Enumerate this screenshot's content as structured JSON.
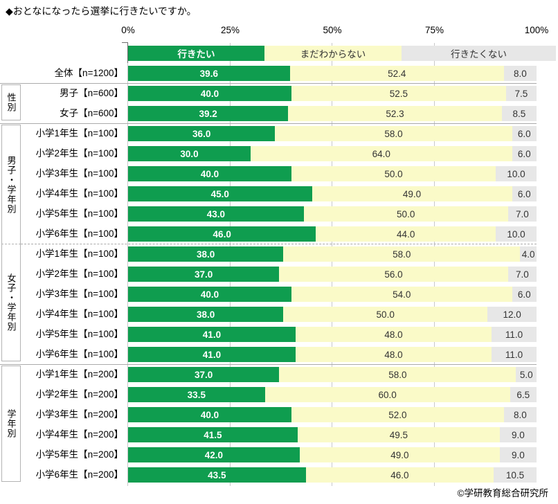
{
  "title": "◆おとなになったら選挙に行きたいですか。",
  "credit": "©学研教育総合研究所",
  "colors": {
    "want": "#0f9d4f",
    "unsure": "#fafac8",
    "not_want": "#e7e7e7",
    "gridline": "#c9c9c9",
    "separator": "#aaaaaa",
    "box_border": "#b3b3b3",
    "value_on_green": "#ffffff",
    "value_on_light": "#333333"
  },
  "chart_data": {
    "type": "bar",
    "stacked": true,
    "orientation": "horizontal",
    "title": "◆おとなになったら選挙に行きたいですか。",
    "xlim": [
      0,
      100
    ],
    "x_ticks": [
      "0%",
      "25%",
      "50%",
      "75%",
      "100%"
    ],
    "grid": "vertical-in-gaps",
    "legend_position": "top-as-bar",
    "series_names": [
      "行きたい",
      "まだわからない",
      "行きたくない"
    ],
    "series_colors": [
      "#0f9d4f",
      "#fafac8",
      "#e7e7e7"
    ],
    "value_format": "one-decimal",
    "groups": [
      {
        "name": "",
        "divider": "none",
        "rows": [
          {
            "label": "全体【n=1200】",
            "values": [
              39.6,
              52.4,
              8.0
            ]
          }
        ]
      },
      {
        "name": "性別",
        "divider": "solid",
        "rows": [
          {
            "label": "男子【n=600】",
            "values": [
              40.0,
              52.5,
              7.5
            ]
          },
          {
            "label": "女子【n=600】",
            "values": [
              39.2,
              52.3,
              8.5
            ]
          }
        ]
      },
      {
        "name": "男子・学年別",
        "divider": "solid",
        "rows": [
          {
            "label": "小学1年生【n=100】",
            "values": [
              36.0,
              58.0,
              6.0
            ]
          },
          {
            "label": "小学2年生【n=100】",
            "values": [
              30.0,
              64.0,
              6.0
            ]
          },
          {
            "label": "小学3年生【n=100】",
            "values": [
              40.0,
              50.0,
              10.0
            ]
          },
          {
            "label": "小学4年生【n=100】",
            "values": [
              45.0,
              49.0,
              6.0
            ]
          },
          {
            "label": "小学5年生【n=100】",
            "values": [
              43.0,
              50.0,
              7.0
            ]
          },
          {
            "label": "小学6年生【n=100】",
            "values": [
              46.0,
              44.0,
              10.0
            ]
          }
        ]
      },
      {
        "name": "女子・学年別",
        "divider": "dashed",
        "rows": [
          {
            "label": "小学1年生【n=100】",
            "values": [
              38.0,
              58.0,
              4.0
            ]
          },
          {
            "label": "小学2年生【n=100】",
            "values": [
              37.0,
              56.0,
              7.0
            ]
          },
          {
            "label": "小学3年生【n=100】",
            "values": [
              40.0,
              54.0,
              6.0
            ]
          },
          {
            "label": "小学4年生【n=100】",
            "values": [
              38.0,
              50.0,
              12.0
            ]
          },
          {
            "label": "小学5年生【n=100】",
            "values": [
              41.0,
              48.0,
              11.0
            ]
          },
          {
            "label": "小学6年生【n=100】",
            "values": [
              41.0,
              48.0,
              11.0
            ]
          }
        ]
      },
      {
        "name": "学年別",
        "divider": "solid",
        "rows": [
          {
            "label": "小学1年生【n=200】",
            "values": [
              37.0,
              58.0,
              5.0
            ]
          },
          {
            "label": "小学2年生【n=200】",
            "values": [
              33.5,
              60.0,
              6.5
            ]
          },
          {
            "label": "小学3年生【n=200】",
            "values": [
              40.0,
              52.0,
              8.0
            ]
          },
          {
            "label": "小学4年生【n=200】",
            "values": [
              41.5,
              49.5,
              9.0
            ]
          },
          {
            "label": "小学5年生【n=200】",
            "values": [
              42.0,
              49.0,
              9.0
            ]
          },
          {
            "label": "小学6年生【n=200】",
            "values": [
              43.5,
              46.0,
              10.5
            ]
          }
        ]
      }
    ],
    "credit": "©学研教育総合研究所"
  }
}
